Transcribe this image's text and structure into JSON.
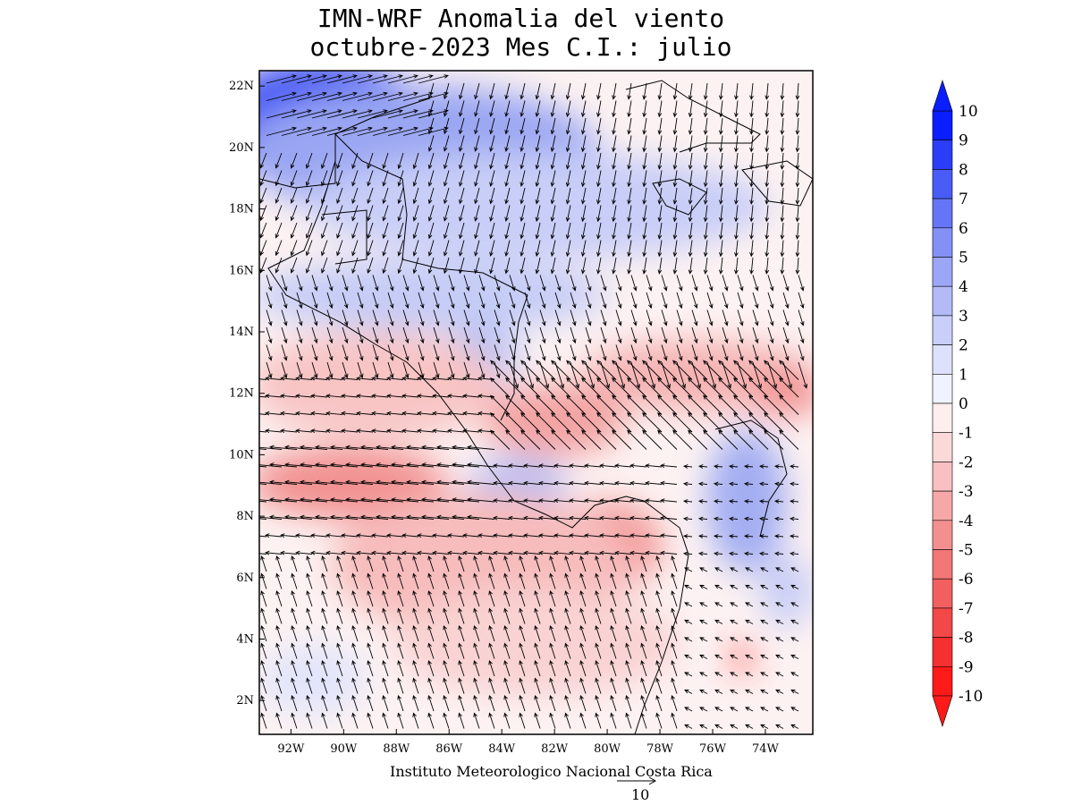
{
  "title_line1": "IMN-WRF Anomalia del viento",
  "title_line2": "octubre-2023 Mes C.I.: julio",
  "footer": "Instituto Meteorologico Nacional Costa Rica",
  "reference_vector_label": "10",
  "colors": {
    "neg_max": "#ff1a1a",
    "pos_max": "#0a1eff",
    "neutral": "#ffffff"
  },
  "map": {
    "lon_range": [
      -93.2,
      -72.2
    ],
    "lat_range": [
      0.9,
      22.5
    ],
    "x_ticks": [
      "92W",
      "90W",
      "88W",
      "86W",
      "84W",
      "82W",
      "80W",
      "78W",
      "76W",
      "74W"
    ],
    "y_ticks": [
      "2N",
      "4N",
      "6N",
      "8N",
      "10N",
      "12N",
      "14N",
      "16N",
      "18N",
      "20N",
      "22N"
    ]
  },
  "colorbar": {
    "labels": [
      "10",
      "9",
      "8",
      "7",
      "6",
      "5",
      "4",
      "3",
      "2",
      "1",
      "0",
      "-1",
      "-2",
      "-3",
      "-4",
      "-5",
      "-6",
      "-7",
      "-8",
      "-9",
      "-10"
    ]
  }
}
